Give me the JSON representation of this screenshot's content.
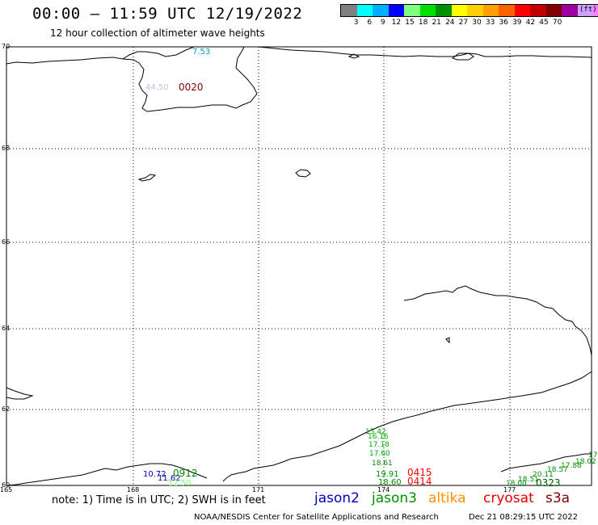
{
  "header": {
    "title": "00:00 – 11:59 UTC 12/19/2022",
    "subtitle": "12 hour collection of altimeter wave heights"
  },
  "legend": {
    "unit": "(ft)",
    "bins": [
      {
        "label": "",
        "color": "#808080"
      },
      {
        "label": "3",
        "color": "#00ffff"
      },
      {
        "label": "6",
        "color": "#00b0ff"
      },
      {
        "label": "9",
        "color": "#0000ff"
      },
      {
        "label": "12",
        "color": "#80ff80"
      },
      {
        "label": "15",
        "color": "#00e000"
      },
      {
        "label": "18",
        "color": "#009000"
      },
      {
        "label": "21",
        "color": "#ffff00"
      },
      {
        "label": "24",
        "color": "#ffd000"
      },
      {
        "label": "27",
        "color": "#ffa000"
      },
      {
        "label": "30",
        "color": "#ff6000"
      },
      {
        "label": "33",
        "color": "#ff0000"
      },
      {
        "label": "36",
        "color": "#c00000"
      },
      {
        "label": "39",
        "color": "#800000"
      },
      {
        "label": "42",
        "color": "#a000a0"
      },
      {
        "label": "45",
        "color": "#d0a0ff"
      },
      {
        "label": "70",
        "color": "#ff80ff"
      },
      {
        "label": "",
        "color": "#000000"
      }
    ]
  },
  "map": {
    "lat_ticks": [
      "70",
      "68",
      "66",
      "64",
      "62",
      "60"
    ],
    "lon_ticks": [
      "165",
      "168",
      "171",
      "174",
      "177"
    ],
    "wave_labels": [
      {
        "text": "7.53",
        "color": "#00a0c0"
      },
      {
        "text": "44.50",
        "color": "#c0c0e0"
      },
      {
        "text": "0020",
        "color": "#800000"
      },
      {
        "text": "15.42",
        "color": "#00b000"
      },
      {
        "text": "16.16",
        "color": "#00b000"
      },
      {
        "text": "17.18",
        "color": "#00b000"
      },
      {
        "text": "17.60",
        "color": "#00b000"
      },
      {
        "text": "18.61",
        "color": "#009000"
      },
      {
        "text": "19.91",
        "color": "#009000"
      },
      {
        "text": "18.60",
        "color": "#009000"
      },
      {
        "text": "0415",
        "color": "#ff0000"
      },
      {
        "text": "0414",
        "color": "#ff0000"
      },
      {
        "text": "10.72",
        "color": "#0000c0"
      },
      {
        "text": "11.62",
        "color": "#0000c0"
      },
      {
        "text": "12.50",
        "color": "#80ff80"
      },
      {
        "text": "0912",
        "color": "#009000"
      },
      {
        "text": "18.00",
        "color": "#009000"
      },
      {
        "text": "18.51",
        "color": "#009000"
      },
      {
        "text": "20.11",
        "color": "#009000"
      },
      {
        "text": "18.57",
        "color": "#009000"
      },
      {
        "text": "17.88",
        "color": "#009000"
      },
      {
        "text": "18.02",
        "color": "#009000"
      },
      {
        "text": "17",
        "color": "#009000"
      },
      {
        "text": "0323",
        "color": "#006000"
      }
    ]
  },
  "footer": {
    "note": "note: 1) Time is in UTC; 2) SWH is in feet",
    "satellites": [
      {
        "name": "jason2",
        "color": "#0000c0"
      },
      {
        "name": "jason3",
        "color": "#009000"
      },
      {
        "name": "altika",
        "color": "#ff9000"
      },
      {
        "name": "cryosat",
        "color": "#e00000"
      },
      {
        "name": "s3a",
        "color": "#800000"
      }
    ],
    "credit": "NOAA/NESDIS Center for Satellite Applications and Research",
    "timestamp": "Dec 21 08:29:15 UTC 2022"
  }
}
